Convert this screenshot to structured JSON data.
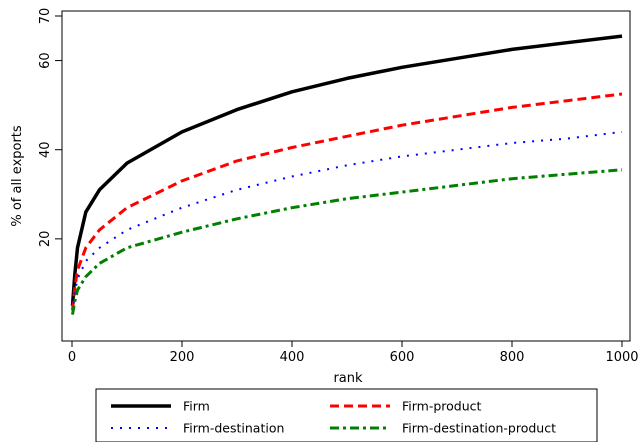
{
  "chart_data": {
    "type": "line",
    "xlabel": "rank",
    "ylabel": "% of all exports",
    "xlim": [
      0,
      1000
    ],
    "ylim": [
      0,
      70
    ],
    "xticks": [
      0,
      200,
      400,
      600,
      800,
      1000
    ],
    "yticks": [
      20,
      40,
      60,
      70
    ],
    "grid": false,
    "legend_position": "bottom",
    "x": [
      1,
      5,
      10,
      25,
      50,
      100,
      200,
      300,
      400,
      500,
      600,
      700,
      800,
      900,
      1000
    ],
    "series": [
      {
        "name": "Firm",
        "color": "#000000",
        "style": "solid",
        "values": [
          5,
          12,
          18,
          26,
          31,
          37,
          44,
          49,
          53,
          56,
          58.5,
          60.5,
          62.5,
          64,
          65.5
        ]
      },
      {
        "name": "Firm-product",
        "color": "#ff0000",
        "style": "dash",
        "values": [
          4,
          9,
          13,
          18,
          22,
          27,
          33,
          37.5,
          40.5,
          43,
          45.5,
          47.5,
          49.5,
          51,
          52.5
        ]
      },
      {
        "name": "Firm-destination",
        "color": "#0000ff",
        "style": "dot",
        "values": [
          3.5,
          8,
          11,
          15,
          18,
          22,
          27,
          31,
          34,
          36.5,
          38.5,
          40,
          41.5,
          42.5,
          44
        ]
      },
      {
        "name": "Firm-destination-product",
        "color": "#008000",
        "style": "dashdot",
        "values": [
          3,
          6,
          8.5,
          11.5,
          14.5,
          18,
          21.5,
          24.5,
          27,
          29,
          30.5,
          32,
          33.5,
          34.5,
          35.5
        ]
      }
    ]
  }
}
